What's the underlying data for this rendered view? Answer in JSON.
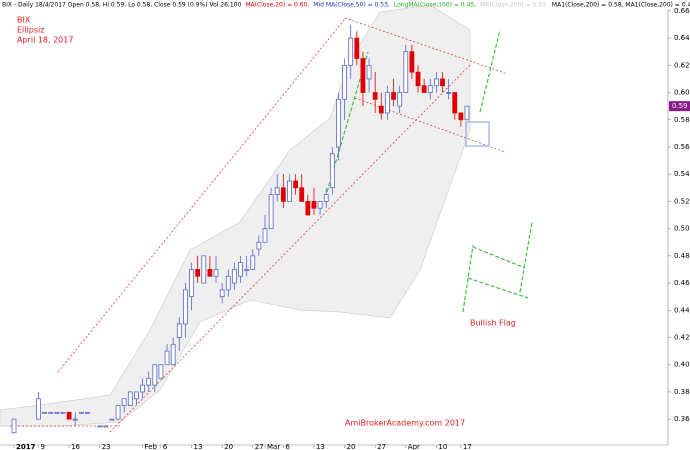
{
  "chart_data": {
    "type": "candlestick",
    "header": [
      {
        "text": "BIX - Daily 18/4/2017 Open 0.58, Hi 0.59, Lo 0.58, Close 0.59 (0.9%) Vol 26,100",
        "color": "#000000"
      },
      {
        "text": "MA(Close,20) = 0.60,",
        "color": "#e00000"
      },
      {
        "text": "Mid MA(Close,50) = 0.53,",
        "color": "#2030c0"
      },
      {
        "text": "LongMA(Close,100) = 0.45,",
        "color": "#20b020"
      },
      {
        "text": "MA(Close,200) = 0.63,",
        "color": "#c8c8c8"
      },
      {
        "text": "MA1(Close,200) = 0.58, MA1(Close,200) = 0.40",
        "color": "#000000"
      }
    ],
    "title": "BIX",
    "subtitle": "Ellipsiz",
    "date_label": "April 18, 2017",
    "annotations": [
      "Bullish Flag",
      "AmiBrokerAcademy.com  2017"
    ],
    "last_price": 0.59,
    "up_color": "#5566cc",
    "down_color": "#e00000",
    "categories": [
      "2017",
      null,
      null,
      null,
      "9",
      null,
      null,
      null,
      null,
      "16",
      null,
      null,
      null,
      null,
      "23",
      null,
      null,
      null,
      null,
      null,
      null,
      "Feb",
      null,
      null,
      "6",
      null,
      null,
      null,
      null,
      "13",
      null,
      null,
      null,
      null,
      "20",
      null,
      null,
      null,
      null,
      "27",
      null,
      "Mar",
      null,
      null,
      "6",
      null,
      null,
      null,
      null,
      "13",
      null,
      null,
      null,
      null,
      "20",
      null,
      null,
      null,
      null,
      "27",
      null,
      null,
      null,
      null,
      "Apr",
      null,
      null,
      null,
      null,
      "10",
      null,
      null,
      null,
      "17",
      null
    ],
    "open": [
      0.35,
      null,
      null,
      null,
      0.36,
      0.365,
      0.365,
      0.365,
      0.365,
      0.365,
      0.36,
      0.365,
      0.365,
      null,
      0.355,
      0.355,
      0.36,
      0.36,
      0.37,
      0.37,
      0.375,
      0.38,
      0.385,
      0.385,
      0.39,
      0.4,
      0.4,
      0.42,
      0.43,
      0.45,
      0.47,
      0.46,
      0.47,
      0.465,
      0.45,
      0.455,
      0.46,
      0.465,
      0.47,
      0.47,
      0.485,
      0.49,
      0.5,
      0.525,
      0.53,
      0.52,
      0.535,
      0.53,
      0.52,
      0.52,
      0.515,
      0.52,
      0.53,
      0.56,
      0.595,
      0.62,
      0.64,
      0.625,
      0.61,
      0.6,
      0.59,
      0.585,
      0.6,
      0.59,
      0.6,
      0.63,
      0.615,
      0.605,
      0.6,
      0.605,
      0.61,
      0.6,
      0.6,
      0.585,
      0.58
    ],
    "high": [
      0.36,
      null,
      null,
      null,
      0.38,
      0.365,
      0.365,
      0.365,
      0.365,
      0.365,
      0.365,
      0.365,
      0.365,
      null,
      0.355,
      0.355,
      0.36,
      0.37,
      0.375,
      0.38,
      0.38,
      0.39,
      0.395,
      0.4,
      0.4,
      0.415,
      0.42,
      0.435,
      0.46,
      0.475,
      0.48,
      0.48,
      0.48,
      0.48,
      0.46,
      0.47,
      0.475,
      0.48,
      0.48,
      0.485,
      0.495,
      0.51,
      0.53,
      0.54,
      0.54,
      0.54,
      0.54,
      0.54,
      0.525,
      0.53,
      0.52,
      0.53,
      0.56,
      0.6,
      0.625,
      0.65,
      0.645,
      0.63,
      0.625,
      0.615,
      0.6,
      0.605,
      0.61,
      0.605,
      0.635,
      0.635,
      0.62,
      0.61,
      0.61,
      0.615,
      0.615,
      0.61,
      0.6,
      0.585,
      0.59
    ],
    "low": [
      0.35,
      null,
      null,
      null,
      0.36,
      0.365,
      0.365,
      0.365,
      0.365,
      0.36,
      0.355,
      0.365,
      0.365,
      null,
      0.355,
      0.355,
      0.36,
      0.36,
      0.365,
      0.37,
      0.37,
      0.375,
      0.38,
      0.38,
      0.39,
      0.4,
      0.4,
      0.41,
      0.42,
      0.44,
      0.46,
      0.46,
      0.465,
      0.46,
      0.445,
      0.45,
      0.455,
      0.46,
      0.465,
      0.47,
      0.48,
      0.49,
      0.5,
      0.52,
      0.515,
      0.52,
      0.525,
      0.52,
      0.51,
      0.51,
      0.51,
      0.515,
      0.525,
      0.55,
      0.58,
      0.61,
      0.62,
      0.59,
      0.6,
      0.585,
      0.58,
      0.58,
      0.59,
      0.585,
      0.6,
      0.61,
      0.6,
      0.6,
      0.595,
      0.6,
      0.6,
      0.595,
      0.58,
      0.575,
      0.58
    ],
    "close": [
      0.36,
      null,
      null,
      null,
      0.375,
      0.365,
      0.365,
      0.365,
      0.365,
      0.36,
      0.36,
      0.365,
      0.365,
      null,
      0.355,
      0.355,
      0.36,
      0.37,
      0.375,
      0.38,
      0.38,
      0.385,
      0.39,
      0.4,
      0.4,
      0.41,
      0.415,
      0.43,
      0.455,
      0.47,
      0.465,
      0.48,
      0.465,
      0.47,
      0.455,
      0.465,
      0.47,
      0.475,
      0.47,
      0.48,
      0.49,
      0.5,
      0.525,
      0.53,
      0.52,
      0.535,
      0.53,
      0.52,
      0.51,
      0.515,
      0.52,
      0.525,
      0.555,
      0.595,
      0.62,
      0.64,
      0.625,
      0.6,
      0.62,
      0.595,
      0.585,
      0.6,
      0.595,
      0.6,
      0.63,
      0.615,
      0.605,
      0.6,
      0.605,
      0.61,
      0.605,
      0.6,
      0.585,
      0.58,
      0.59
    ],
    "ylim": [
      0.341,
      0.668
    ],
    "yticks": [
      0.36,
      0.38,
      {
        "value": 0.4,
        "label": "0.40"
      },
      0.42,
      0.44,
      0.46,
      0.48,
      {
        "value": 0.5,
        "label": "0.50"
      },
      0.52,
      0.54,
      0.56,
      0.58,
      {
        "value": 0.6,
        "label": "0.60"
      },
      0.62,
      0.64,
      0.66
    ]
  }
}
